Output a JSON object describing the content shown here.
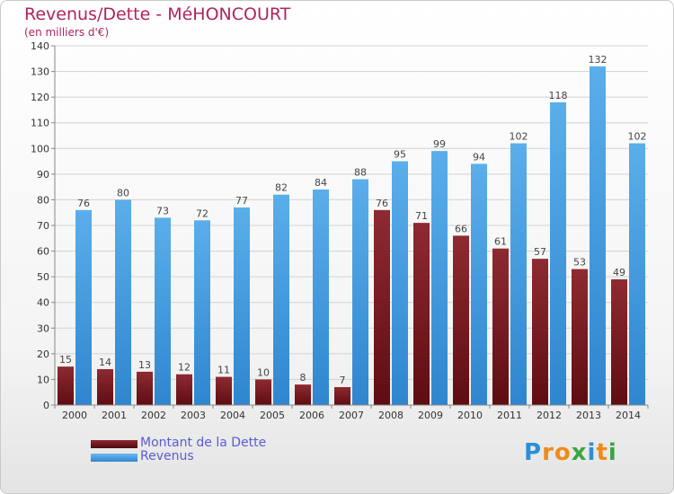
{
  "header": {
    "title": "Revenus/Dette - MéHONCOURT",
    "subtitle": "(en milliers d'€)"
  },
  "chart_data": {
    "type": "bar",
    "title": "Revenus/Dette - MéHONCOURT",
    "ylabel": "(en milliers d'€)",
    "xlabel": "",
    "ylim": [
      0,
      140
    ],
    "ytick_step": 10,
    "grid": true,
    "categories": [
      "2000",
      "2001",
      "2002",
      "2003",
      "2004",
      "2005",
      "2006",
      "2007",
      "2008",
      "2009",
      "2010",
      "2011",
      "2012",
      "2013",
      "2014"
    ],
    "series": [
      {
        "name": "Montant de la Dette",
        "color": "#7d1a20",
        "values": [
          15,
          14,
          13,
          12,
          11,
          10,
          8,
          7,
          76,
          71,
          66,
          61,
          57,
          53,
          49
        ]
      },
      {
        "name": "Revenus",
        "color": "#4ea1e4",
        "values": [
          76,
          80,
          73,
          72,
          77,
          82,
          84,
          88,
          95,
          99,
          94,
          102,
          118,
          132,
          102
        ]
      }
    ]
  },
  "legend": {
    "items": [
      {
        "label": "Montant de la Dette",
        "color": "#7d1a20"
      },
      {
        "label": "Revenus",
        "color": "#4ea1e4"
      }
    ]
  },
  "logo": {
    "text": "Proxiti",
    "letters": [
      "P",
      "r",
      "o",
      "x",
      "i",
      "t",
      "i"
    ],
    "colors": [
      "#2e8fd6",
      "#f08a1c",
      "#f08a1c",
      "#3aa541",
      "#2e8fd6",
      "#f08a1c",
      "#3aa541"
    ]
  }
}
